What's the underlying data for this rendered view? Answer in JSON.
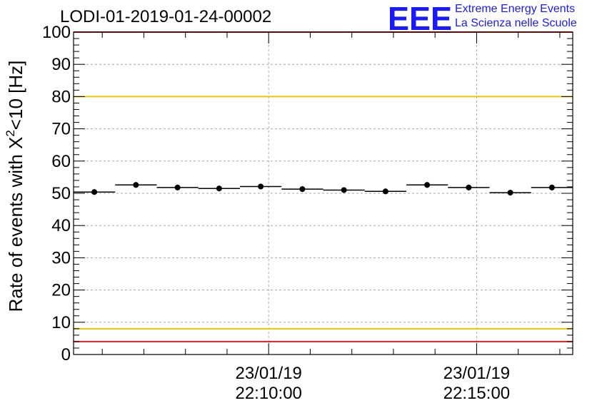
{
  "chart_data": {
    "type": "scatter",
    "title": "LODI-01-2019-01-24-00002",
    "xlabel": "",
    "ylabel": "Rate of events with X²<10 [Hz]",
    "ylabel_parts": {
      "pre": "Rate of events with X",
      "sup": "2",
      "post": "<10 [Hz]"
    },
    "ylim": [
      0,
      100
    ],
    "yticks": [
      0,
      10,
      20,
      30,
      40,
      50,
      60,
      70,
      80,
      90,
      100
    ],
    "xlim": [
      0,
      12
    ],
    "x": [
      0.5,
      1.5,
      2.5,
      3.5,
      4.5,
      5.5,
      6.5,
      7.5,
      8.5,
      9.5,
      10.5,
      11.5
    ],
    "values": [
      50.4,
      52.6,
      51.8,
      51.5,
      52.1,
      51.3,
      51.0,
      50.6,
      52.6,
      51.8,
      50.2,
      51.8
    ],
    "xticks": [
      {
        "x": 4.69,
        "date": "23/01/19",
        "time": "22:10:00"
      },
      {
        "x": 9.69,
        "date": "23/01/19",
        "time": "22:15:00"
      }
    ],
    "minor_xticks": [
      0.69,
      1.69,
      2.69,
      3.69,
      5.69,
      6.69,
      7.69,
      8.69,
      10.69,
      11.69
    ],
    "reference_lines": [
      {
        "y": 80,
        "color": "#e8c800",
        "name": "upper-yellow-threshold"
      },
      {
        "y": 8,
        "color": "#e8c800",
        "name": "lower-yellow-threshold"
      },
      {
        "y": 100,
        "color": "#e02020",
        "name": "upper-red-threshold"
      },
      {
        "y": 4,
        "color": "#e02020",
        "name": "lower-red-threshold"
      }
    ],
    "grid": true
  },
  "logo": {
    "mark": "EEE",
    "line1": "Extreme Energy Events",
    "line2": "La Scienza nelle Scuole",
    "color": "#1a1aff"
  }
}
